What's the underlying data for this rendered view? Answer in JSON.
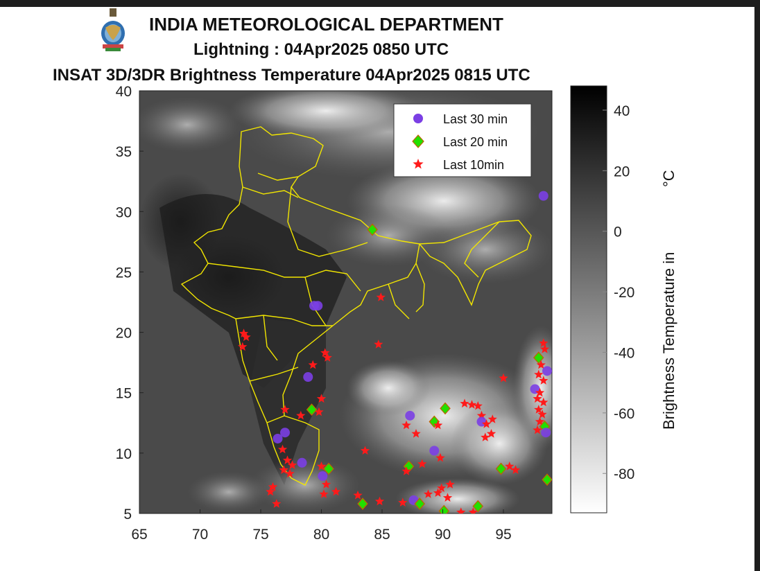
{
  "header": {
    "org": "INDIA METEOROLOGICAL DEPARTMENT",
    "subtitle": "Lightning : 04Apr2025 0850 UTC",
    "product": "INSAT 3D/3DR Brightness Temperature 04Apr2025   0815 UTC"
  },
  "map": {
    "lon_ticks": [
      "65",
      "70",
      "75",
      "80",
      "85",
      "90",
      "95"
    ],
    "lat_ticks": [
      "40",
      "35",
      "30",
      "25",
      "20",
      "15",
      "10",
      "5"
    ],
    "lon_range": [
      65,
      99
    ],
    "lat_range": [
      5,
      40
    ],
    "boundary_color": "#f2e600"
  },
  "legend": {
    "items": [
      {
        "label": "Last 30 min",
        "marker": "circle",
        "color": "#7b3fe4"
      },
      {
        "label": "Last 20 min",
        "marker": "diamond",
        "color": "#22e000"
      },
      {
        "label": "Last 10min",
        "marker": "star",
        "color": "#ff1a1a"
      }
    ]
  },
  "colorbar": {
    "tick_labels": [
      "40",
      "20",
      "0",
      "-20",
      "-40",
      "-60",
      "-80"
    ],
    "tick_values": [
      40,
      20,
      0,
      -20,
      -40,
      -60,
      -80
    ],
    "range": [
      -93,
      48
    ],
    "label": "Brightness Temperature in",
    "unit": "°C"
  },
  "lightning": [
    {
      "type": "circle",
      "lon": 98.3,
      "lat": 31.3
    },
    {
      "type": "diamond",
      "lon": 84.2,
      "lat": 28.5
    },
    {
      "type": "circle",
      "lon": 79.7,
      "lat": 22.2
    },
    {
      "type": "circle",
      "lon": 79.4,
      "lat": 22.2
    },
    {
      "type": "star",
      "lon": 84.9,
      "lat": 22.9
    },
    {
      "type": "star",
      "lon": 73.6,
      "lat": 19.9
    },
    {
      "type": "star",
      "lon": 73.8,
      "lat": 19.6
    },
    {
      "type": "star",
      "lon": 73.5,
      "lat": 18.8
    },
    {
      "type": "star",
      "lon": 80.3,
      "lat": 18.3
    },
    {
      "type": "star",
      "lon": 80.5,
      "lat": 17.9
    },
    {
      "type": "star",
      "lon": 79.3,
      "lat": 17.3
    },
    {
      "type": "circle",
      "lon": 78.9,
      "lat": 16.3
    },
    {
      "type": "star",
      "lon": 84.7,
      "lat": 19.0
    },
    {
      "type": "star",
      "lon": 80.0,
      "lat": 14.5
    },
    {
      "type": "star",
      "lon": 79.8,
      "lat": 13.4
    },
    {
      "type": "diamond",
      "lon": 79.2,
      "lat": 13.6
    },
    {
      "type": "star",
      "lon": 78.3,
      "lat": 13.1
    },
    {
      "type": "star",
      "lon": 77.0,
      "lat": 13.6
    },
    {
      "type": "circle",
      "lon": 77.0,
      "lat": 11.7
    },
    {
      "type": "circle",
      "lon": 76.4,
      "lat": 11.2
    },
    {
      "type": "star",
      "lon": 76.8,
      "lat": 10.3
    },
    {
      "type": "star",
      "lon": 77.2,
      "lat": 9.4
    },
    {
      "type": "star",
      "lon": 77.6,
      "lat": 9.0
    },
    {
      "type": "circle",
      "lon": 78.4,
      "lat": 9.2
    },
    {
      "type": "star",
      "lon": 76.9,
      "lat": 8.6
    },
    {
      "type": "star",
      "lon": 77.4,
      "lat": 8.3
    },
    {
      "type": "star",
      "lon": 76.0,
      "lat": 7.2
    },
    {
      "type": "star",
      "lon": 75.8,
      "lat": 6.8
    },
    {
      "type": "star",
      "lon": 76.3,
      "lat": 5.8
    },
    {
      "type": "star",
      "lon": 80.0,
      "lat": 8.9
    },
    {
      "type": "circle",
      "lon": 80.1,
      "lat": 8.1
    },
    {
      "type": "diamond",
      "lon": 80.6,
      "lat": 8.7
    },
    {
      "type": "star",
      "lon": 80.4,
      "lat": 7.4
    },
    {
      "type": "star",
      "lon": 80.2,
      "lat": 6.6
    },
    {
      "type": "star",
      "lon": 81.2,
      "lat": 6.8
    },
    {
      "type": "star",
      "lon": 83.0,
      "lat": 6.5
    },
    {
      "type": "diamond",
      "lon": 83.4,
      "lat": 5.8
    },
    {
      "type": "star",
      "lon": 84.8,
      "lat": 6.0
    },
    {
      "type": "star",
      "lon": 83.6,
      "lat": 10.2
    },
    {
      "type": "circle",
      "lon": 87.3,
      "lat": 13.1
    },
    {
      "type": "star",
      "lon": 87.0,
      "lat": 12.3
    },
    {
      "type": "star",
      "lon": 87.8,
      "lat": 11.6
    },
    {
      "type": "diamond",
      "lon": 89.3,
      "lat": 12.6
    },
    {
      "type": "star",
      "lon": 89.6,
      "lat": 12.3
    },
    {
      "type": "diamond",
      "lon": 90.2,
      "lat": 13.7
    },
    {
      "type": "circle",
      "lon": 89.3,
      "lat": 10.2
    },
    {
      "type": "star",
      "lon": 89.8,
      "lat": 9.6
    },
    {
      "type": "star",
      "lon": 88.3,
      "lat": 9.1
    },
    {
      "type": "diamond",
      "lon": 87.2,
      "lat": 8.9
    },
    {
      "type": "star",
      "lon": 87.0,
      "lat": 8.5
    },
    {
      "type": "star",
      "lon": 86.7,
      "lat": 5.9
    },
    {
      "type": "circle",
      "lon": 87.6,
      "lat": 6.1
    },
    {
      "type": "diamond",
      "lon": 88.1,
      "lat": 5.8
    },
    {
      "type": "star",
      "lon": 88.8,
      "lat": 6.6
    },
    {
      "type": "star",
      "lon": 89.6,
      "lat": 6.7
    },
    {
      "type": "star",
      "lon": 90.4,
      "lat": 6.3
    },
    {
      "type": "diamond",
      "lon": 90.1,
      "lat": 5.2
    },
    {
      "type": "star",
      "lon": 91.5,
      "lat": 5.1
    },
    {
      "type": "star",
      "lon": 92.5,
      "lat": 5.1
    },
    {
      "type": "diamond",
      "lon": 92.9,
      "lat": 5.6
    },
    {
      "type": "star",
      "lon": 89.9,
      "lat": 7.1
    },
    {
      "type": "star",
      "lon": 90.6,
      "lat": 7.4
    },
    {
      "type": "star",
      "lon": 91.8,
      "lat": 14.1
    },
    {
      "type": "star",
      "lon": 92.4,
      "lat": 14.0
    },
    {
      "type": "star",
      "lon": 92.9,
      "lat": 13.9
    },
    {
      "type": "star",
      "lon": 93.2,
      "lat": 13.1
    },
    {
      "type": "circle",
      "lon": 93.2,
      "lat": 12.6
    },
    {
      "type": "star",
      "lon": 93.6,
      "lat": 12.4
    },
    {
      "type": "star",
      "lon": 94.1,
      "lat": 12.8
    },
    {
      "type": "star",
      "lon": 93.5,
      "lat": 11.3
    },
    {
      "type": "star",
      "lon": 94.0,
      "lat": 11.6
    },
    {
      "type": "star",
      "lon": 95.0,
      "lat": 16.2
    },
    {
      "type": "diamond",
      "lon": 94.8,
      "lat": 8.7
    },
    {
      "type": "star",
      "lon": 95.5,
      "lat": 8.9
    },
    {
      "type": "star",
      "lon": 96.0,
      "lat": 8.6
    },
    {
      "type": "star",
      "lon": 98.3,
      "lat": 19.1
    },
    {
      "type": "star",
      "lon": 98.4,
      "lat": 18.6
    },
    {
      "type": "diamond",
      "lon": 97.9,
      "lat": 17.9
    },
    {
      "type": "star",
      "lon": 98.1,
      "lat": 17.3
    },
    {
      "type": "circle",
      "lon": 98.6,
      "lat": 16.8
    },
    {
      "type": "star",
      "lon": 97.9,
      "lat": 16.5
    },
    {
      "type": "star",
      "lon": 98.3,
      "lat": 16.0
    },
    {
      "type": "circle",
      "lon": 97.6,
      "lat": 15.3
    },
    {
      "type": "star",
      "lon": 98.0,
      "lat": 15.0
    },
    {
      "type": "star",
      "lon": 97.8,
      "lat": 14.5
    },
    {
      "type": "star",
      "lon": 98.3,
      "lat": 14.2
    },
    {
      "type": "star",
      "lon": 97.9,
      "lat": 13.6
    },
    {
      "type": "star",
      "lon": 98.2,
      "lat": 13.2
    },
    {
      "type": "star",
      "lon": 98.0,
      "lat": 12.6
    },
    {
      "type": "diamond",
      "lon": 98.4,
      "lat": 12.2
    },
    {
      "type": "circle",
      "lon": 98.5,
      "lat": 11.7
    },
    {
      "type": "star",
      "lon": 97.8,
      "lat": 11.9
    },
    {
      "type": "diamond",
      "lon": 98.6,
      "lat": 7.8
    }
  ]
}
